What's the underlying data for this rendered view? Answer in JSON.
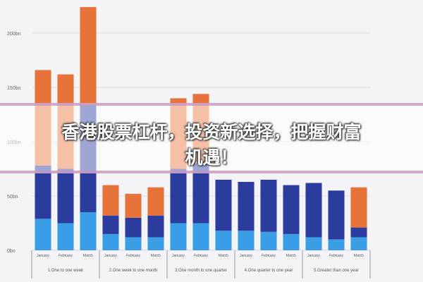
{
  "banner": {
    "lines": [
      "香港股票杠杆，投资新选择，把握财富",
      "机遇！"
    ]
  },
  "chart_data": {
    "type": "bar",
    "stacked": true,
    "categories": [
      "January",
      "February",
      "March",
      "January",
      "February",
      "March",
      "January",
      "February",
      "March",
      "January",
      "February",
      "March",
      "January",
      "February",
      "March"
    ],
    "groups": [
      "1.One to one week",
      "2.One week to one month",
      "3.One month to one quarter",
      "4.One quarter to one year",
      "5.Greater than one year"
    ],
    "series": [
      {
        "color": "#3a9ee6",
        "values": [
          29,
          25,
          35,
          15,
          12,
          12,
          25,
          25,
          18,
          18,
          17,
          15,
          12,
          10,
          12
        ]
      },
      {
        "color": "#2b3b9e",
        "values": [
          49,
          50,
          99,
          17,
          18,
          20,
          50,
          55,
          47,
          45,
          48,
          45,
          50,
          45,
          9
        ]
      },
      {
        "color": "#e8733a",
        "values": [
          88,
          87,
          90,
          28,
          22,
          26,
          65,
          64,
          0,
          0,
          0,
          0,
          0,
          0,
          37
        ]
      }
    ],
    "ylim": [
      0,
      200
    ],
    "yticks": [
      {
        "value": 0,
        "label": "0bn"
      },
      {
        "value": 50,
        "label": "50bn"
      },
      {
        "value": 100,
        "label": "100bn"
      },
      {
        "value": 150,
        "label": "150bn"
      },
      {
        "value": 200,
        "label": "200bn"
      }
    ],
    "grid": true
  }
}
